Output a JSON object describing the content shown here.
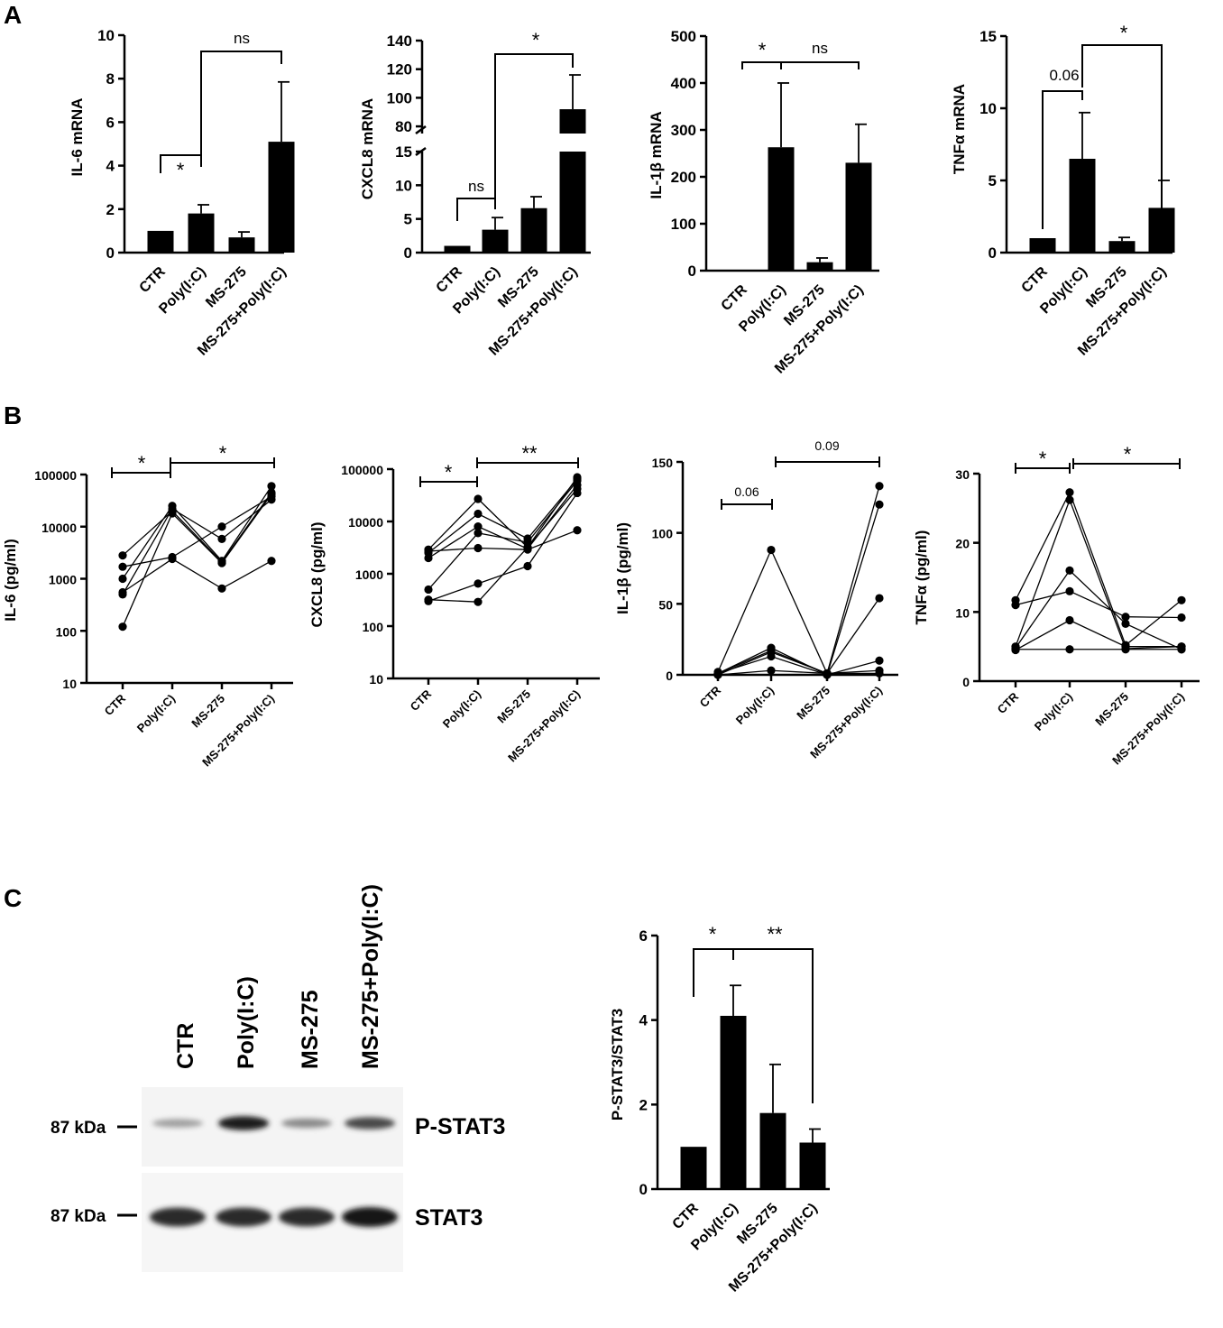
{
  "panels": {
    "A": "A",
    "B": "B",
    "C": "C"
  },
  "chart_data": [
    {
      "id": "A1",
      "type": "bar",
      "ylabel": "IL-6 mRNA",
      "categories": [
        "CTR",
        "Poly(I:C)",
        "MS-275",
        "MS-275+Poly(I:C)"
      ],
      "values": [
        1.0,
        1.8,
        0.7,
        5.1
      ],
      "errors": [
        0,
        0.4,
        0.25,
        2.75
      ],
      "ylim": [
        0,
        10
      ],
      "yticks": [
        "0",
        "2",
        "4",
        "6",
        "8",
        "10"
      ],
      "annotations": [
        {
          "label": "*",
          "from": "CTR",
          "to": "Poly(I:C)"
        },
        {
          "label": "ns",
          "from": "Poly(I:C)",
          "to": "MS-275+Poly(I:C)"
        }
      ]
    },
    {
      "id": "A2",
      "type": "bar",
      "ylabel": "CXCL8 mRNA",
      "categories": [
        "CTR",
        "Poly(I:C)",
        "MS-275",
        "MS-275+Poly(I:C)"
      ],
      "values": [
        1.0,
        3.4,
        6.6,
        92
      ],
      "errors": [
        0,
        1.8,
        1.7,
        24
      ],
      "ylim": [
        0,
        140
      ],
      "axis_break": [
        15,
        75
      ],
      "yticks_lower": [
        "0",
        "5",
        "10",
        "15"
      ],
      "yticks_upper": [
        "80",
        "100",
        "120",
        "140"
      ],
      "annotations": [
        {
          "label": "ns",
          "from": "CTR",
          "to": "Poly(I:C)"
        },
        {
          "label": "*",
          "from": "Poly(I:C)",
          "to": "MS-275+Poly(I:C)"
        }
      ]
    },
    {
      "id": "A3",
      "type": "bar",
      "ylabel": "IL-1β mRNA",
      "categories": [
        "CTR",
        "Poly(I:C)",
        "MS-275",
        "MS-275+Poly(I:C)"
      ],
      "values": [
        1,
        263,
        18,
        230
      ],
      "errors": [
        0,
        137,
        9,
        82
      ],
      "ylim": [
        0,
        500
      ],
      "yticks": [
        "0",
        "100",
        "200",
        "300",
        "400",
        "500"
      ],
      "annotations": [
        {
          "label": "*",
          "from": "CTR",
          "to": "Poly(I:C)"
        },
        {
          "label": "ns",
          "from": "Poly(I:C)",
          "to": "MS-275+Poly(I:C)"
        }
      ]
    },
    {
      "id": "A4",
      "type": "bar",
      "ylabel": "TNFα mRNA",
      "categories": [
        "CTR",
        "Poly(I:C)",
        "MS-275",
        "MS-275+Poly(I:C)"
      ],
      "values": [
        1.0,
        6.5,
        0.8,
        3.1
      ],
      "errors": [
        0,
        3.2,
        0.25,
        1.9
      ],
      "ylim": [
        0,
        15
      ],
      "yticks": [
        "0",
        "5",
        "10",
        "15"
      ],
      "annotations": [
        {
          "label": "0.06",
          "from": "CTR",
          "to": "Poly(I:C)"
        },
        {
          "label": "*",
          "from": "Poly(I:C)",
          "to": "MS-275+Poly(I:C)"
        }
      ]
    },
    {
      "id": "B1",
      "type": "line",
      "yscale": "log",
      "ylabel": "IL-6 (pg/ml)",
      "categories": [
        "CTR",
        "Poly(I:C)",
        "MS-275",
        "MS-275+Poly(I:C)"
      ],
      "ylim": [
        10,
        100000
      ],
      "yticks": [
        "10",
        "100",
        "1000",
        "10000",
        "100000"
      ],
      "series": [
        {
          "values": [
            2800,
            20000,
            2100,
            45000
          ]
        },
        {
          "values": [
            1700,
            2600,
            10000,
            38000
          ]
        },
        {
          "values": [
            1000,
            25000,
            2200,
            60000
          ]
        },
        {
          "values": [
            500,
            22000,
            5800,
            33000
          ]
        },
        {
          "values": [
            550,
            2400,
            650,
            2200
          ]
        },
        {
          "values": [
            120,
            18000,
            2000,
            42000
          ]
        }
      ],
      "annotations": [
        {
          "label": "*",
          "from": "CTR",
          "to": "Poly(I:C)"
        },
        {
          "label": "*",
          "from": "Poly(I:C)",
          "to": "MS-275+Poly(I:C)"
        }
      ]
    },
    {
      "id": "B2",
      "type": "line",
      "yscale": "log",
      "ylabel": "CXCL8 (pg/ml)",
      "categories": [
        "CTR",
        "Poly(I:C)",
        "MS-275",
        "MS-275+Poly(I:C)"
      ],
      "ylim": [
        10,
        100000
      ],
      "yticks": [
        "10",
        "100",
        "1000",
        "10000",
        "100000"
      ],
      "series": [
        {
          "values": [
            2900,
            27000,
            3200,
            70000
          ]
        },
        {
          "values": [
            2500,
            14000,
            4700,
            65000
          ]
        },
        {
          "values": [
            2000,
            8000,
            3000,
            50000
          ]
        },
        {
          "values": [
            500,
            6000,
            4000,
            60000
          ]
        },
        {
          "values": [
            300,
            650,
            1400,
            35000
          ]
        },
        {
          "values": [
            2700,
            3100,
            2900,
            6800
          ]
        },
        {
          "values": [
            320,
            290,
            3200,
            42000
          ]
        }
      ],
      "annotations": [
        {
          "label": "*",
          "from": "CTR",
          "to": "Poly(I:C)"
        },
        {
          "label": "**",
          "from": "Poly(I:C)",
          "to": "MS-275+Poly(I:C)"
        }
      ]
    },
    {
      "id": "B3",
      "type": "line",
      "ylabel": "IL-1β (pg/ml)",
      "categories": [
        "CTR",
        "Poly(I:C)",
        "MS-275",
        "MS-275+Poly(I:C)"
      ],
      "ylim": [
        0,
        150
      ],
      "yticks": [
        "0",
        "50",
        "100",
        "150"
      ],
      "series": [
        {
          "values": [
            2,
            88,
            1,
            133
          ]
        },
        {
          "values": [
            1,
            19,
            0,
            120
          ]
        },
        {
          "values": [
            0,
            16,
            1,
            54
          ]
        },
        {
          "values": [
            1,
            13,
            0,
            10
          ]
        },
        {
          "values": [
            0,
            3,
            1,
            3
          ]
        },
        {
          "values": [
            1,
            17,
            1,
            1
          ]
        }
      ],
      "annotations": [
        {
          "label": "0.06",
          "from": "CTR",
          "to": "Poly(I:C)"
        },
        {
          "label": "0.09",
          "from": "Poly(I:C)",
          "to": "MS-275+Poly(I:C)"
        }
      ]
    },
    {
      "id": "B4",
      "type": "line",
      "ylabel": "TNFα (pg/ml)",
      "categories": [
        "CTR",
        "Poly(I:C)",
        "MS-275",
        "MS-275+Poly(I:C)"
      ],
      "ylim": [
        0,
        30
      ],
      "yticks": [
        "0",
        "10",
        "20",
        "30"
      ],
      "series": [
        {
          "values": [
            11.7,
            27.3,
            5.2,
            11.7
          ]
        },
        {
          "values": [
            11.0,
            13.0,
            9.3,
            9.2
          ]
        },
        {
          "values": [
            5.0,
            26.2,
            4.7,
            5.0
          ]
        },
        {
          "values": [
            4.8,
            16.0,
            8.3,
            4.6
          ]
        },
        {
          "values": [
            4.5,
            8.8,
            5.0,
            5.0
          ]
        },
        {
          "values": [
            4.6,
            4.6,
            4.6,
            4.6
          ]
        }
      ],
      "annotations": [
        {
          "label": "*",
          "from": "CTR",
          "to": "Poly(I:C)"
        },
        {
          "label": "*",
          "from": "Poly(I:C)",
          "to": "MS-275+Poly(I:C)"
        }
      ]
    },
    {
      "id": "C2",
      "type": "bar",
      "ylabel": "P-STAT3/STAT3",
      "categories": [
        "CTR",
        "Poly(I:C)",
        "MS-275",
        "MS-275+Poly(I:C)"
      ],
      "values": [
        1.0,
        4.1,
        1.8,
        1.1
      ],
      "errors": [
        0,
        0.72,
        1.15,
        0.32
      ],
      "ylim": [
        0,
        6
      ],
      "yticks": [
        "0",
        "2",
        "4",
        "6"
      ],
      "annotations": [
        {
          "label": "*",
          "from": "CTR",
          "to": "Poly(I:C)"
        },
        {
          "label": "**",
          "from": "Poly(I:C)",
          "to": "MS-275+Poly(I:C)"
        }
      ]
    }
  ],
  "western_blot": {
    "lanes": [
      "CTR",
      "Poly(I:C)",
      "MS-275",
      "MS-275+Poly(I:C)"
    ],
    "rows": [
      {
        "label": "P-STAT3",
        "marker": "87 kDa"
      },
      {
        "label": "STAT3",
        "marker": "87 kDa"
      }
    ],
    "pstat3_intensity": [
      0.35,
      0.95,
      0.45,
      0.75
    ],
    "stat3_intensity": [
      0.9,
      0.9,
      0.9,
      1.0
    ]
  }
}
